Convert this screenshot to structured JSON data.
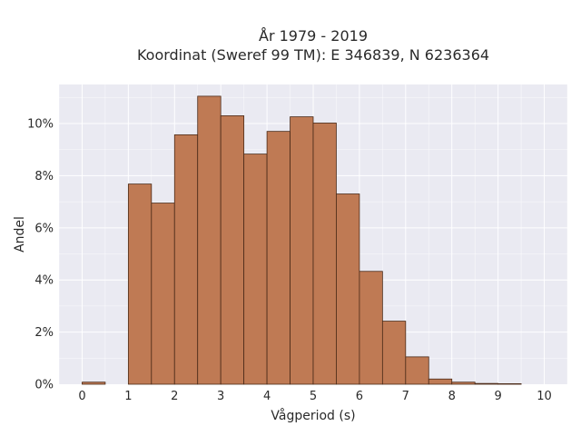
{
  "chart_data": {
    "type": "bar",
    "title_line1": "År 1979 - 2019",
    "title_line2": "Koordinat (Sweref 99 TM): E 346839, N 6236364",
    "xlabel": "Vågperiod (s)",
    "ylabel": "Andel",
    "xlim": [
      -0.5,
      10.5
    ],
    "ylim": [
      0,
      11.5
    ],
    "x_ticks": [
      0,
      1,
      2,
      3,
      4,
      5,
      6,
      7,
      8,
      9,
      10
    ],
    "x_tick_labels": [
      "0",
      "1",
      "2",
      "3",
      "4",
      "5",
      "6",
      "7",
      "8",
      "9",
      "10"
    ],
    "y_ticks": [
      0,
      2,
      4,
      6,
      8,
      10
    ],
    "y_tick_labels": [
      "0%",
      "2%",
      "4%",
      "6%",
      "8%",
      "10%"
    ],
    "bin_width": 0.5,
    "bins": [
      {
        "start": 0.0,
        "value": 0.08
      },
      {
        "start": 0.5,
        "value": 0.0
      },
      {
        "start": 1.0,
        "value": 7.68
      },
      {
        "start": 1.5,
        "value": 6.95
      },
      {
        "start": 2.0,
        "value": 9.57
      },
      {
        "start": 2.5,
        "value": 11.05
      },
      {
        "start": 3.0,
        "value": 10.3
      },
      {
        "start": 3.5,
        "value": 8.83
      },
      {
        "start": 4.0,
        "value": 9.7
      },
      {
        "start": 4.5,
        "value": 10.26
      },
      {
        "start": 5.0,
        "value": 10.02
      },
      {
        "start": 5.5,
        "value": 7.3
      },
      {
        "start": 6.0,
        "value": 4.33
      },
      {
        "start": 6.5,
        "value": 2.42
      },
      {
        "start": 7.0,
        "value": 1.05
      },
      {
        "start": 7.5,
        "value": 0.2
      },
      {
        "start": 8.0,
        "value": 0.08
      },
      {
        "start": 8.5,
        "value": 0.03
      },
      {
        "start": 9.0,
        "value": 0.02
      }
    ],
    "colors": {
      "bar": "#bf7a54",
      "bar_edge": "#4a2a18",
      "plot_bg": "#eaeaf2",
      "grid": "#ffffff"
    },
    "grid": true
  }
}
